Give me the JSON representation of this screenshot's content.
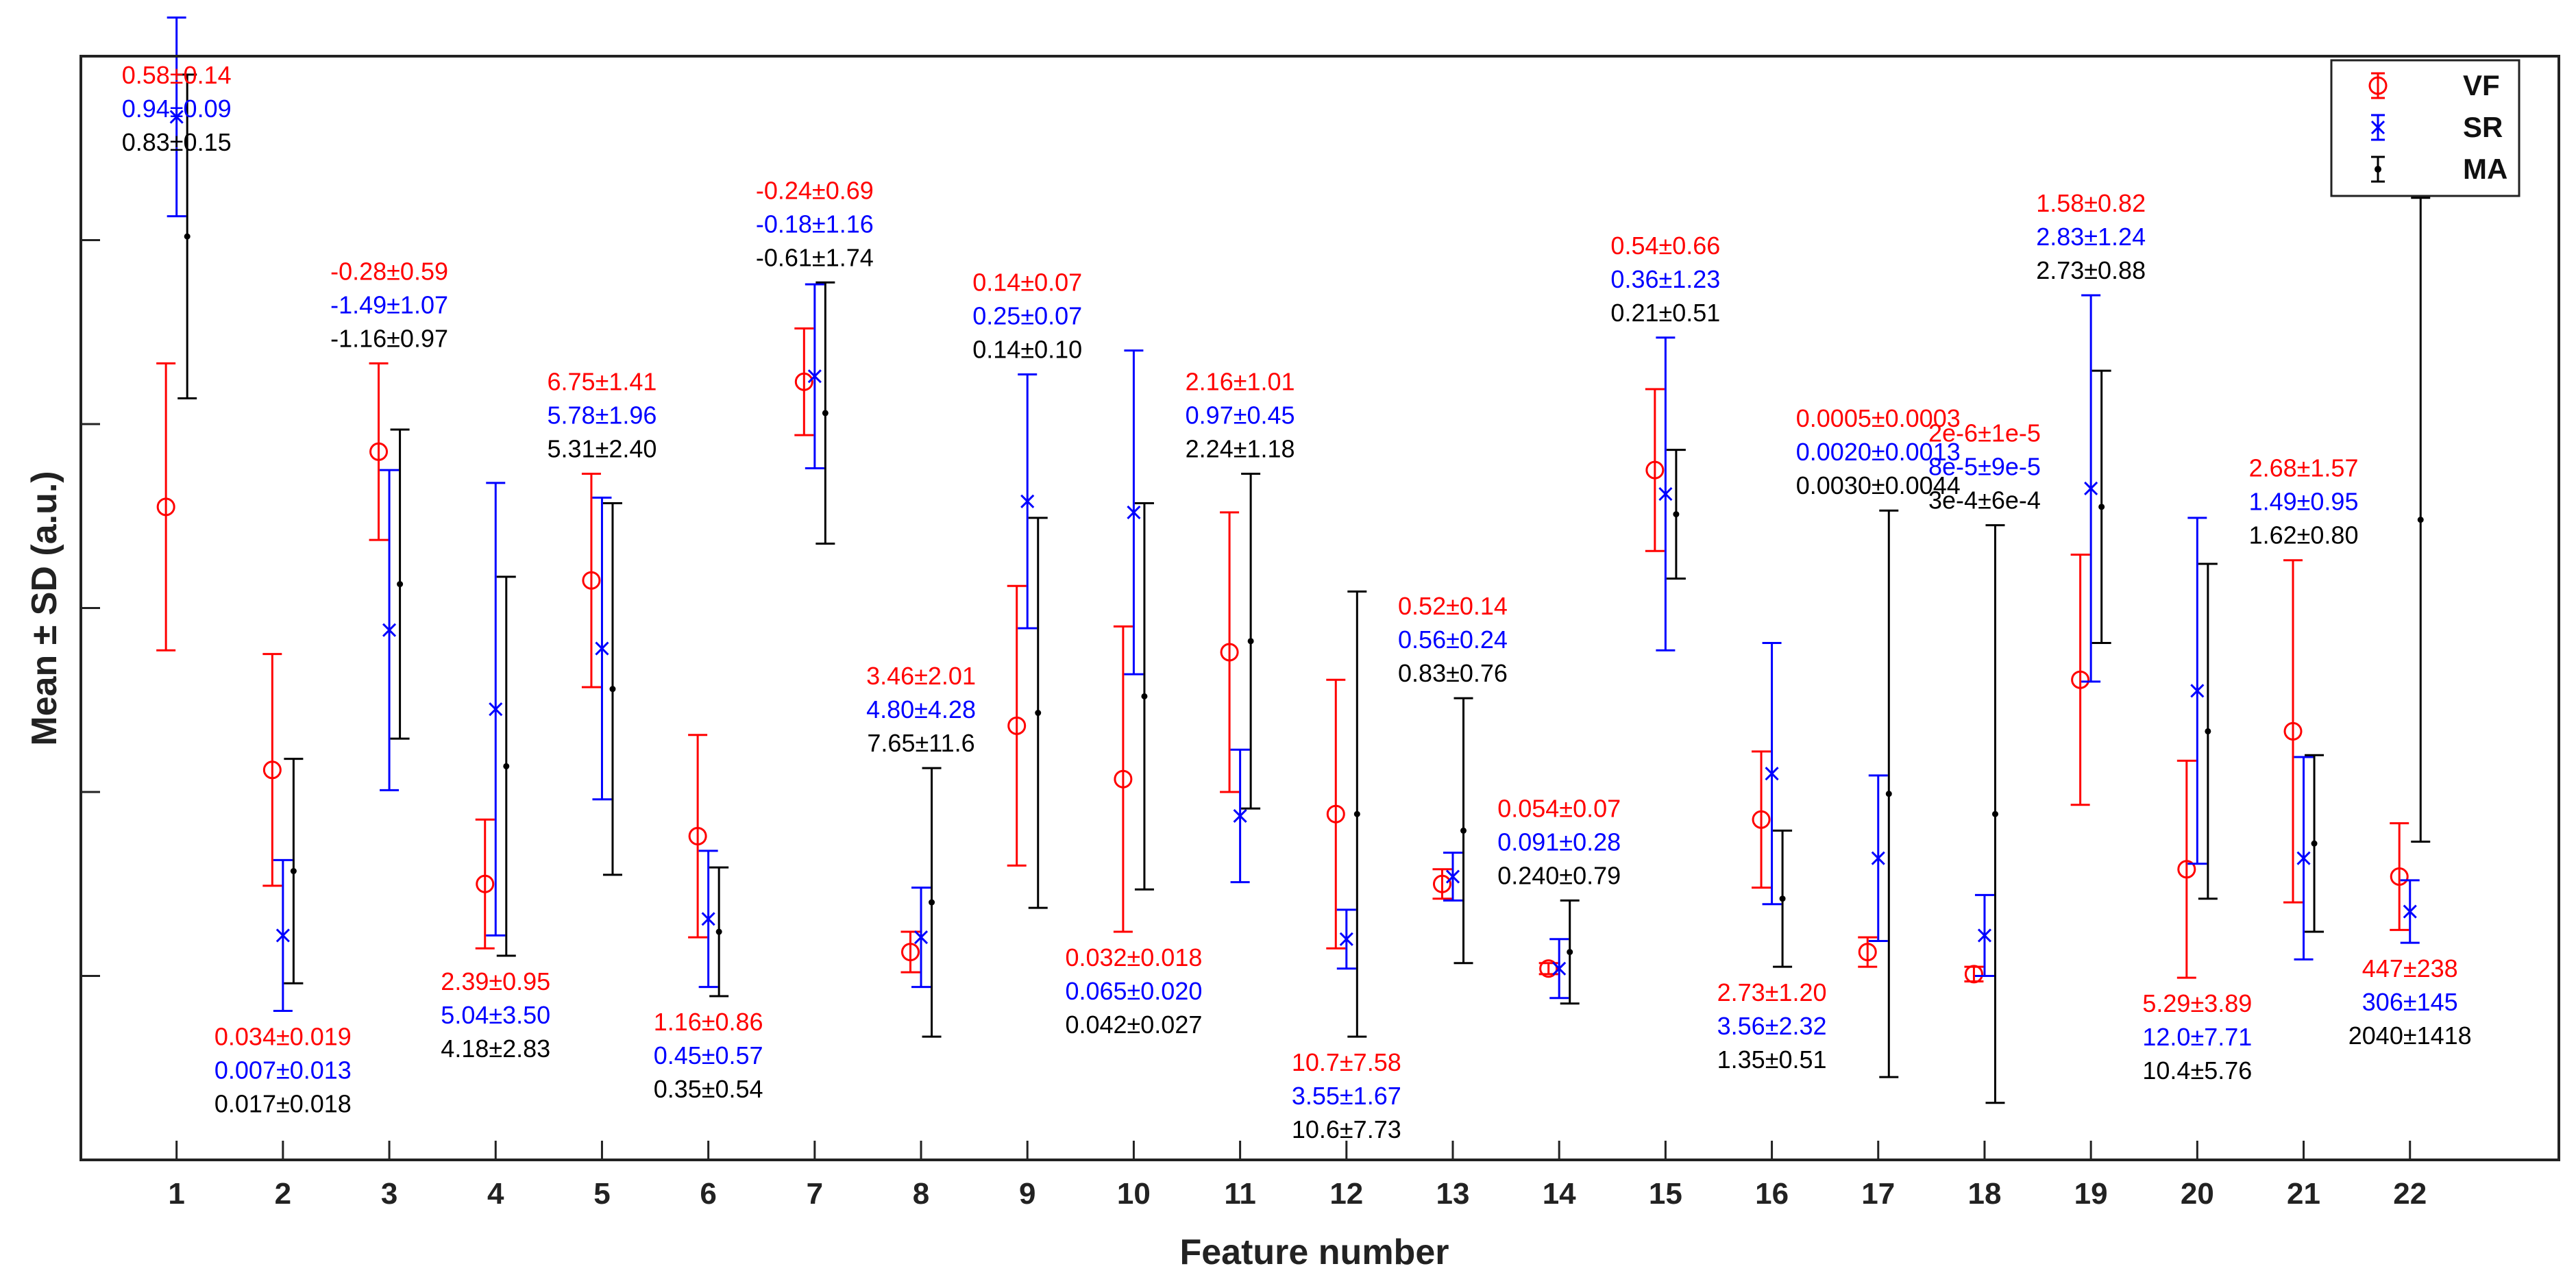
{
  "colors": {
    "VF": "#ff0000",
    "SR": "#0000ff",
    "MA": "#000000"
  },
  "chart_data": {
    "type": "errorbar",
    "title": "",
    "xlabel": "Feature number",
    "ylabel": "Mean ± SD (a.u.)",
    "categories": [
      "1",
      "2",
      "3",
      "4",
      "5",
      "6",
      "7",
      "8",
      "9",
      "10",
      "11",
      "12",
      "13",
      "14",
      "15",
      "16",
      "17",
      "18",
      "19",
      "20",
      "21",
      "22"
    ],
    "xlim": [
      0.1,
      23.4
    ],
    "ylim": [
      -1.0,
      5.0
    ],
    "grid": false,
    "legend_position": "top-right",
    "normalized": true,
    "series": [
      {
        "name": "VF",
        "marker": "circle",
        "means": [
          2.55,
          1.12,
          2.85,
          0.5,
          2.15,
          0.76,
          3.23,
          0.13,
          1.36,
          1.07,
          1.76,
          0.88,
          0.5,
          0.04,
          2.75,
          0.85,
          0.13,
          0.01,
          1.61,
          0.58,
          1.33,
          0.54
        ],
        "sd": [
          0.78,
          0.63,
          0.48,
          0.35,
          0.58,
          0.55,
          0.29,
          0.11,
          0.76,
          0.83,
          0.76,
          0.73,
          0.08,
          0.03,
          0.44,
          0.37,
          0.08,
          0.04,
          0.68,
          0.59,
          0.93,
          0.29
        ]
      },
      {
        "name": "SR",
        "marker": "x",
        "means": [
          4.67,
          0.22,
          1.88,
          1.45,
          1.78,
          0.31,
          3.26,
          0.21,
          2.58,
          2.52,
          0.87,
          0.2,
          0.54,
          0.04,
          2.62,
          1.1,
          0.64,
          0.22,
          2.65,
          1.55,
          0.64,
          0.35
        ],
        "sd": [
          0.54,
          0.41,
          0.87,
          1.23,
          0.82,
          0.37,
          0.5,
          0.27,
          0.69,
          0.88,
          0.36,
          0.16,
          0.13,
          0.16,
          0.85,
          0.71,
          0.45,
          0.22,
          1.05,
          0.94,
          0.55,
          0.17
        ]
      },
      {
        "name": "MA",
        "marker": "dot",
        "means": [
          4.02,
          0.57,
          2.13,
          1.14,
          1.56,
          0.24,
          3.06,
          0.4,
          1.43,
          1.52,
          1.82,
          0.88,
          0.79,
          0.13,
          2.51,
          0.42,
          0.99,
          0.88,
          2.55,
          1.33,
          0.72,
          2.48
        ],
        "sd": [
          0.88,
          0.61,
          0.84,
          1.03,
          1.01,
          0.35,
          0.71,
          0.73,
          1.06,
          1.05,
          0.91,
          1.21,
          0.72,
          0.28,
          0.35,
          0.37,
          1.54,
          1.57,
          0.74,
          0.91,
          0.48,
          1.75
        ]
      }
    ],
    "annotations": [
      {
        "feature": 1,
        "position": "above",
        "lines": [
          "0.58±0.14",
          "0.94±0.09",
          "0.83±0.15"
        ]
      },
      {
        "feature": 2,
        "position": "below",
        "lines": [
          "0.034±0.019",
          "0.007±0.013",
          "0.017±0.018"
        ]
      },
      {
        "feature": 3,
        "position": "above",
        "lines": [
          "-0.28±0.59",
          "-1.49±1.07",
          "-1.16±0.97"
        ]
      },
      {
        "feature": 4,
        "position": "below",
        "lines": [
          "2.39±0.95",
          "5.04±3.50",
          "4.18±2.83"
        ]
      },
      {
        "feature": 5,
        "position": "above",
        "lines": [
          "6.75±1.41",
          "5.78±1.96",
          "5.31±2.40"
        ]
      },
      {
        "feature": 6,
        "position": "below",
        "lines": [
          "1.16±0.86",
          "0.45±0.57",
          "0.35±0.54"
        ]
      },
      {
        "feature": 7,
        "position": "above",
        "lines": [
          "-0.24±0.69",
          "-0.18±1.16",
          "-0.61±1.74"
        ]
      },
      {
        "feature": 8,
        "position": "above",
        "lines": [
          "3.46±2.01",
          "4.80±4.28",
          "7.65±11.6"
        ]
      },
      {
        "feature": 9,
        "position": "above",
        "lines": [
          "0.14±0.07",
          "0.25±0.07",
          "0.14±0.10"
        ]
      },
      {
        "feature": 10,
        "position": "below",
        "lines": [
          "0.032±0.018",
          "0.065±0.020",
          "0.042±0.027"
        ]
      },
      {
        "feature": 11,
        "position": "above",
        "lines": [
          "2.16±1.01",
          "0.97±0.45",
          "2.24±1.18"
        ]
      },
      {
        "feature": 12,
        "position": "below",
        "lines": [
          "10.7±7.58",
          "3.55±1.67",
          "10.6±7.73"
        ]
      },
      {
        "feature": 13,
        "position": "above",
        "lines": [
          "0.52±0.14",
          "0.56±0.24",
          "0.83±0.76"
        ]
      },
      {
        "feature": 14,
        "position": "above",
        "lines": [
          "0.054±0.07",
          "0.091±0.28",
          "0.240±0.79"
        ]
      },
      {
        "feature": 15,
        "position": "above",
        "lines": [
          "0.54±0.66",
          "0.36±1.23",
          "0.21±0.51"
        ]
      },
      {
        "feature": 16,
        "position": "below",
        "lines": [
          "2.73±1.20",
          "3.56±2.32",
          "1.35±0.51"
        ]
      },
      {
        "feature": 17,
        "position": "above",
        "lines": [
          "0.0005±0.0003",
          "0.0020±0.0013",
          "0.0030±0.0044"
        ]
      },
      {
        "feature": 18,
        "position": "above",
        "lines": [
          "2e-6±1e-5",
          "8e-5±9e-5",
          "3e-4±6e-4"
        ]
      },
      {
        "feature": 19,
        "position": "above",
        "lines": [
          "1.58±0.82",
          "2.83±1.24",
          "2.73±0.88"
        ]
      },
      {
        "feature": 20,
        "position": "below",
        "lines": [
          "5.29±3.89",
          "12.0±7.71",
          "10.4±5.76"
        ]
      },
      {
        "feature": 21,
        "position": "above",
        "lines": [
          "2.68±1.57",
          "1.49±0.95",
          "1.62±0.80"
        ]
      },
      {
        "feature": 22,
        "position": "below",
        "lines": [
          "447±238",
          "306±145",
          "2040±1418"
        ]
      }
    ],
    "legend": [
      "VF",
      "SR",
      "MA"
    ]
  }
}
